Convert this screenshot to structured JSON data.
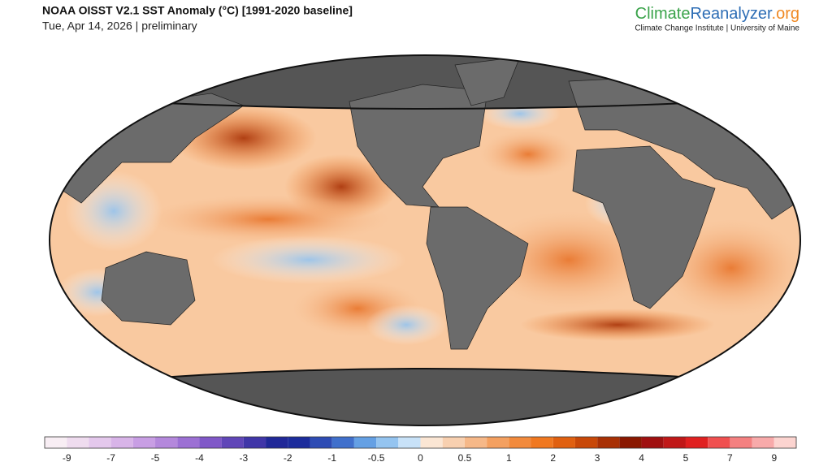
{
  "header": {
    "title": "NOAA OISST V2.1 SST Anomaly (°C) [1991-2020 baseline]",
    "subtitle": "Tue, Apr 14, 2026 | preliminary"
  },
  "brand": {
    "parts": [
      "Climate",
      "Reanalyzer",
      ".org"
    ],
    "tagline": "Climate Change Institute | University of Maine"
  },
  "colorbar": {
    "colors": [
      "#f8eef4",
      "#efdcef",
      "#e4c8ec",
      "#d8b4e8",
      "#c89ee4",
      "#b488dc",
      "#9c70d4",
      "#8058c8",
      "#6046b8",
      "#4036a8",
      "#202898",
      "#1c2c9c",
      "#2e4cb4",
      "#4070cc",
      "#64a0e4",
      "#94c4f0",
      "#c8e2f8",
      "#fbe6d4",
      "#f8d0b0",
      "#f6b888",
      "#f4a060",
      "#f28a3c",
      "#f07820",
      "#e06010",
      "#c84808",
      "#a83004",
      "#8a1800",
      "#a01010",
      "#c01818",
      "#e02020",
      "#f05050",
      "#f48080",
      "#f8aaaa",
      "#fcd4d0"
    ],
    "ticks": [
      -9,
      -7,
      -5,
      -4,
      -3,
      -2,
      -1,
      -0.5,
      0,
      0.5,
      1,
      2,
      3,
      4,
      5,
      7,
      9
    ]
  }
}
